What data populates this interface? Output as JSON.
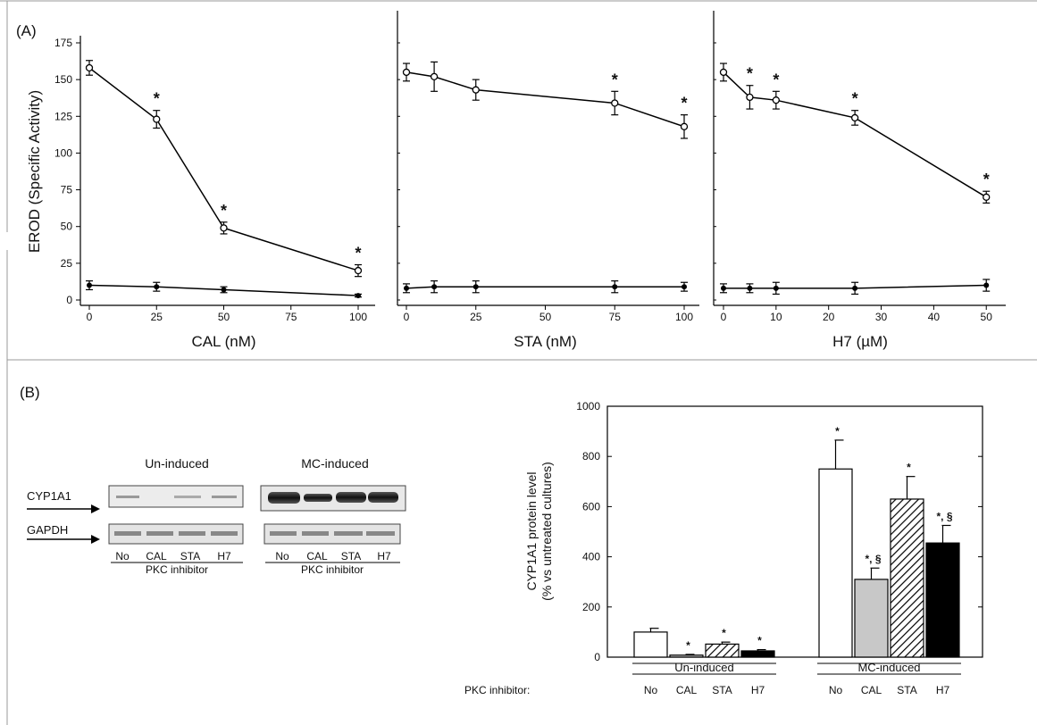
{
  "panel_a": {
    "label": "(A)"
  },
  "panel_b": {
    "label": "(B)"
  },
  "chart_data": [
    {
      "type": "line",
      "xlabel": "CAL (nM)",
      "ylabel": "EROD (Specific Activity)",
      "xlim": [
        0,
        100
      ],
      "ylim": [
        0,
        175
      ],
      "x_ticks": [
        0,
        25,
        50,
        75,
        100
      ],
      "y_ticks": [
        0,
        25,
        50,
        75,
        100,
        125,
        150,
        175
      ],
      "series": [
        {
          "marker": "open",
          "x": [
            0,
            25,
            50,
            100
          ],
          "y": [
            158,
            123,
            49,
            20
          ],
          "err": [
            5,
            6,
            4,
            4
          ],
          "sig": [
            false,
            true,
            true,
            true
          ]
        },
        {
          "marker": "filled",
          "x": [
            0,
            25,
            50,
            100
          ],
          "y": [
            10,
            9,
            7,
            3
          ],
          "err": [
            3,
            3,
            2,
            1
          ]
        }
      ]
    },
    {
      "type": "line",
      "xlabel": "STA (nM)",
      "xlim": [
        0,
        100
      ],
      "ylim": [
        0,
        175
      ],
      "x_ticks": [
        0,
        25,
        50,
        75,
        100
      ],
      "series": [
        {
          "marker": "open",
          "x": [
            0,
            10,
            25,
            75,
            100
          ],
          "y": [
            155,
            152,
            143,
            134,
            118
          ],
          "err": [
            6,
            10,
            7,
            8,
            8
          ],
          "sig": [
            false,
            false,
            false,
            true,
            true
          ]
        },
        {
          "marker": "filled",
          "x": [
            0,
            10,
            25,
            75,
            100
          ],
          "y": [
            8,
            9,
            9,
            9,
            9
          ],
          "err": [
            3,
            4,
            4,
            4,
            3
          ]
        }
      ]
    },
    {
      "type": "line",
      "xlabel": "H7 (µM)",
      "xlim": [
        0,
        52
      ],
      "ylim": [
        0,
        175
      ],
      "x_ticks": [
        0,
        10,
        20,
        30,
        40,
        50
      ],
      "series": [
        {
          "marker": "open",
          "x": [
            0,
            5,
            10,
            25,
            50
          ],
          "y": [
            155,
            138,
            136,
            124,
            70
          ],
          "err": [
            6,
            8,
            6,
            5,
            4
          ],
          "sig": [
            false,
            true,
            true,
            true,
            true
          ]
        },
        {
          "marker": "filled",
          "x": [
            0,
            5,
            10,
            25,
            50
          ],
          "y": [
            8,
            8,
            8,
            8,
            10
          ],
          "err": [
            3,
            3,
            4,
            4,
            4
          ]
        }
      ]
    },
    {
      "type": "bar",
      "ylabel_line1": "CYP1A1 protein level",
      "ylabel_line2": "(% vs untreated cultures)",
      "ylim": [
        0,
        1000
      ],
      "y_ticks": [
        0,
        200,
        400,
        600,
        800,
        1000
      ],
      "categories": [
        "No",
        "CAL",
        "STA",
        "H7"
      ],
      "category_prefix": "PKC inhibitor:",
      "groups": [
        {
          "name": "Un-induced",
          "values": [
            100,
            8,
            52,
            25
          ],
          "errors": [
            15,
            3,
            8,
            5
          ],
          "annotations": [
            "",
            "*",
            "*",
            "*"
          ]
        },
        {
          "name": "MC-induced",
          "values": [
            750,
            310,
            630,
            455
          ],
          "errors": [
            115,
            45,
            90,
            70
          ],
          "annotations": [
            "*",
            "*, §",
            "*",
            "*, §"
          ]
        }
      ],
      "fills": [
        "white",
        "#c8c8c8",
        "hatch",
        "#000000"
      ]
    }
  ],
  "blot": {
    "un_induced_title": "Un-induced",
    "mc_induced_title": "MC-induced",
    "row_cyp": "CYP1A1",
    "row_gapdh": "GAPDH",
    "lanes": [
      "No",
      "CAL",
      "STA",
      "H7"
    ],
    "footer": "PKC inhibitor"
  }
}
